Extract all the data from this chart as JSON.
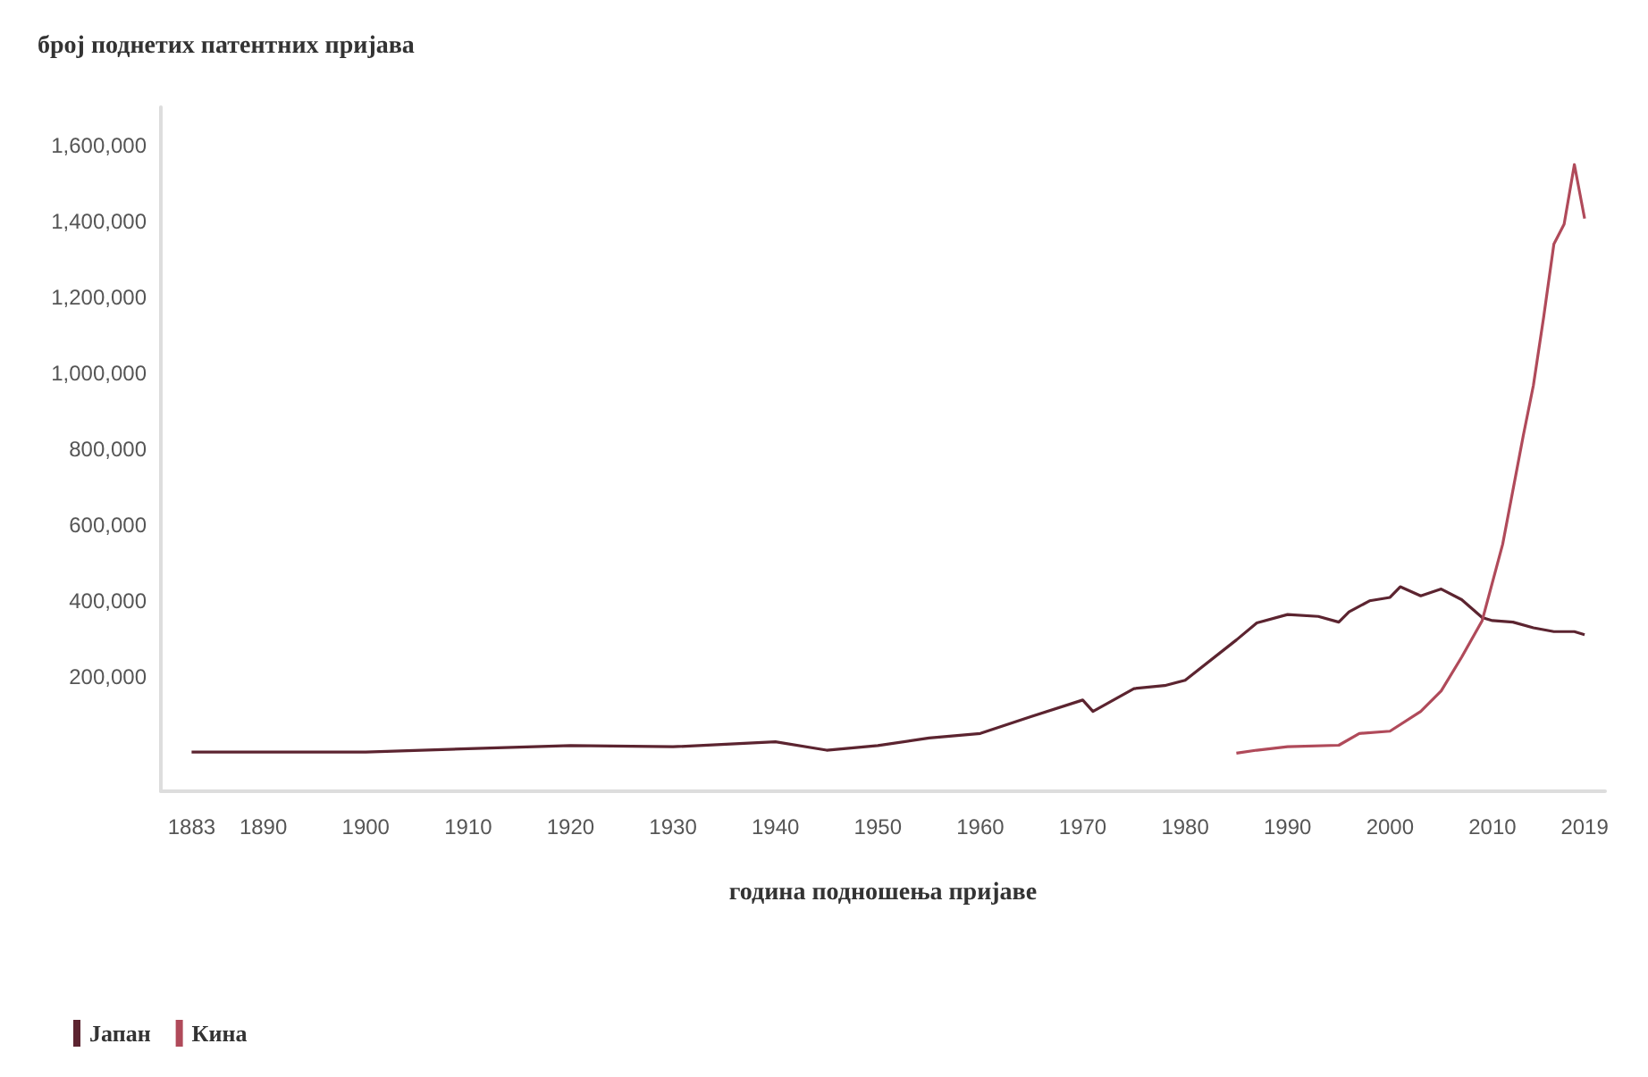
{
  "chart_data": {
    "type": "line",
    "ylabel": "број поднетих патентних пријава",
    "xlabel": "година подношења пријаве",
    "xlim": [
      1880,
      2021
    ],
    "xticks": [
      1883,
      1890,
      1900,
      1910,
      1920,
      1930,
      1940,
      1950,
      1960,
      1970,
      1980,
      1990,
      2000,
      2010,
      2019
    ],
    "ylim": [
      -100000,
      1700000
    ],
    "yticks": [
      {
        "value": 200000,
        "label": "200,000"
      },
      {
        "value": 400000,
        "label": "400,000"
      },
      {
        "value": 600000,
        "label": "600,000"
      },
      {
        "value": 800000,
        "label": "800,000"
      },
      {
        "value": 1000000,
        "label": "1,000,000"
      },
      {
        "value": 1200000,
        "label": "1,200,000"
      },
      {
        "value": 1400000,
        "label": "1,400,000"
      },
      {
        "value": 1600000,
        "label": "1,600,000"
      }
    ],
    "grid": false,
    "legend": "bottom left",
    "series": [
      {
        "name": "Јапан",
        "color": "#5c2430",
        "x": [
          1883,
          1900,
          1910,
          1920,
          1930,
          1940,
          1945,
          1950,
          1955,
          1960,
          1965,
          1970,
          1971,
          1975,
          1978,
          1980,
          1985,
          1987,
          1990,
          1993,
          1995,
          1996,
          1998,
          2000,
          2001,
          2003,
          2005,
          2007,
          2009,
          2010,
          2012,
          2014,
          2016,
          2018,
          2019
        ],
        "values": [
          3000,
          3000,
          12000,
          20000,
          17000,
          30000,
          8000,
          20000,
          40000,
          52000,
          97000,
          140000,
          110000,
          170000,
          178000,
          192000,
          298000,
          343000,
          365000,
          360000,
          345000,
          372000,
          401000,
          410000,
          438000,
          414000,
          432000,
          404000,
          357000,
          349000,
          345000,
          330000,
          320000,
          320000,
          312000
        ]
      },
      {
        "name": "Кина",
        "color": "#b04a5a",
        "x": [
          1985,
          1987,
          1990,
          1995,
          1997,
          2000,
          2003,
          2005,
          2007,
          2009,
          2011,
          2013,
          2014,
          2015,
          2016,
          2017,
          2018,
          2019
        ],
        "values": [
          0,
          8000,
          17000,
          21000,
          52000,
          58000,
          110000,
          164000,
          253000,
          349000,
          550000,
          834000,
          968000,
          1147000,
          1340000,
          1392000,
          1549000,
          1407000
        ]
      }
    ]
  }
}
